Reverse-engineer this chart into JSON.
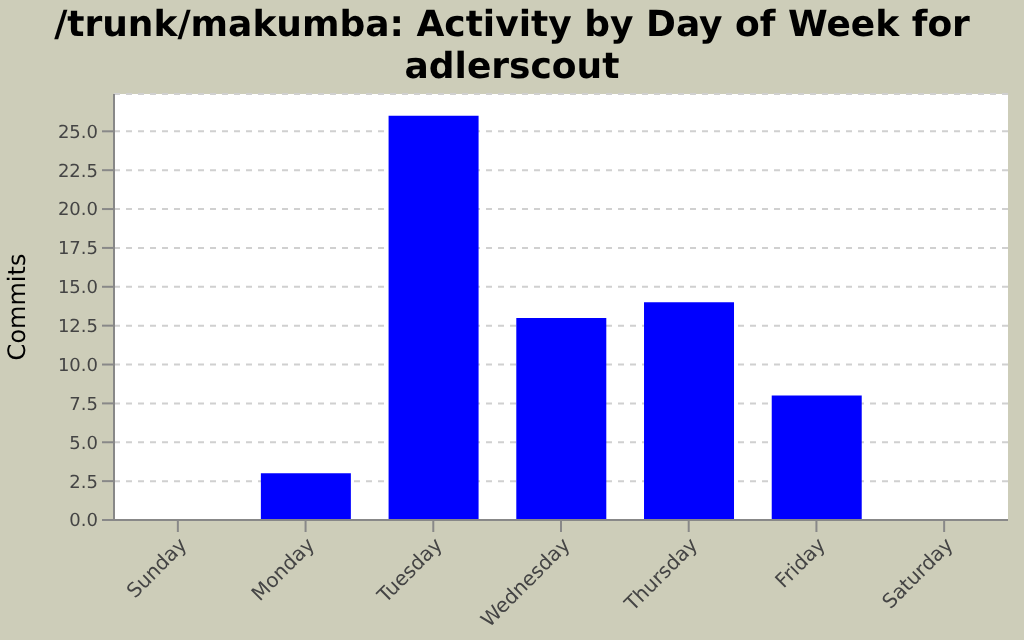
{
  "chart_data": {
    "type": "bar",
    "title": "/trunk/makumba: Activity by Day of Week for adlerscout",
    "ylabel": "Commits",
    "categories": [
      "Sunday",
      "Monday",
      "Tuesday",
      "Wednesday",
      "Thursday",
      "Friday",
      "Saturday"
    ],
    "values": [
      0,
      3,
      26,
      13,
      14,
      8,
      0
    ],
    "color": "#0000ff",
    "ylim": [
      0,
      27.4
    ],
    "yticks": [
      {
        "value": 0,
        "label": "0.0"
      },
      {
        "value": 2.5,
        "label": "2.5"
      },
      {
        "value": 5,
        "label": "5.0"
      },
      {
        "value": 7.5,
        "label": "7.5"
      },
      {
        "value": 10,
        "label": "10.0"
      },
      {
        "value": 12.5,
        "label": "12.5"
      },
      {
        "value": 15,
        "label": "15.0"
      },
      {
        "value": 17.5,
        "label": "17.5"
      },
      {
        "value": 20,
        "label": "20.0"
      },
      {
        "value": 22.5,
        "label": "22.5"
      },
      {
        "value": 25,
        "label": "25.0"
      }
    ],
    "grid": "y",
    "legend": false
  }
}
